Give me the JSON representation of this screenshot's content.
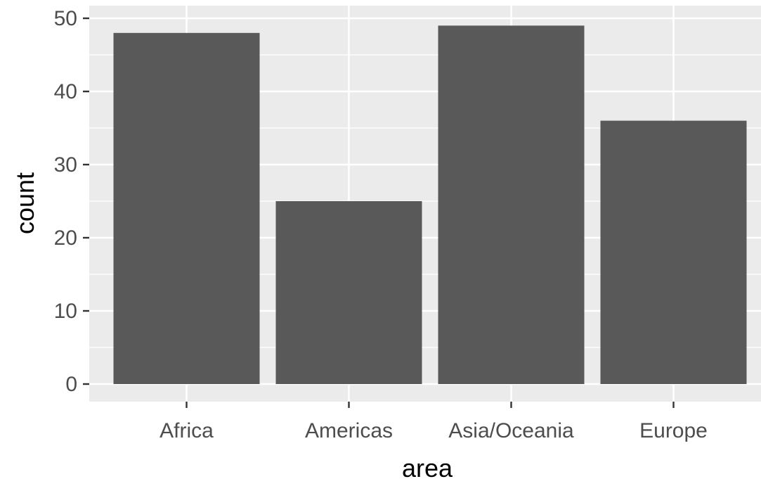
{
  "chart_data": {
    "type": "bar",
    "categories": [
      "Africa",
      "Americas",
      "Asia/Oceania",
      "Europe"
    ],
    "values": [
      48,
      25,
      49,
      36
    ],
    "xlabel": "area",
    "ylabel": "count",
    "ylim": [
      0,
      50
    ],
    "yticks": [
      0,
      10,
      20,
      30,
      40,
      50
    ],
    "grid": true,
    "colors": {
      "panel_background": "#ebebeb",
      "grid": "#ffffff",
      "bar_fill": "#595959",
      "tick_text": "#4d4d4d",
      "tick_mark": "#333333"
    }
  }
}
